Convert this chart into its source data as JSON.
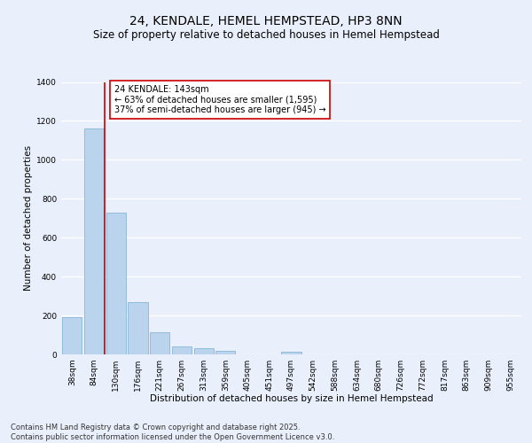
{
  "title": "24, KENDALE, HEMEL HEMPSTEAD, HP3 8NN",
  "subtitle": "Size of property relative to detached houses in Hemel Hempstead",
  "xlabel": "Distribution of detached houses by size in Hemel Hempstead",
  "ylabel": "Number of detached properties",
  "categories": [
    "38sqm",
    "84sqm",
    "130sqm",
    "176sqm",
    "221sqm",
    "267sqm",
    "313sqm",
    "359sqm",
    "405sqm",
    "451sqm",
    "497sqm",
    "542sqm",
    "588sqm",
    "634sqm",
    "680sqm",
    "726sqm",
    "772sqm",
    "817sqm",
    "863sqm",
    "909sqm",
    "955sqm"
  ],
  "values": [
    193,
    1160,
    730,
    270,
    115,
    40,
    32,
    17,
    0,
    0,
    15,
    0,
    0,
    0,
    0,
    0,
    0,
    0,
    0,
    0,
    0
  ],
  "bar_color": "#bad4ee",
  "bar_edge_color": "#7aadd4",
  "vline_color": "#cc0000",
  "vline_position": 1.5,
  "annotation_text": "24 KENDALE: 143sqm\n← 63% of detached houses are smaller (1,595)\n37% of semi-detached houses are larger (945) →",
  "annotation_box_facecolor": "#ffffff",
  "annotation_box_edgecolor": "#cc0000",
  "ylim": [
    0,
    1400
  ],
  "yticks": [
    0,
    200,
    400,
    600,
    800,
    1000,
    1200,
    1400
  ],
  "bg_color": "#eaf0fb",
  "plot_bg_color": "#eaf0fb",
  "grid_color": "#ffffff",
  "footer": "Contains HM Land Registry data © Crown copyright and database right 2025.\nContains public sector information licensed under the Open Government Licence v3.0.",
  "title_fontsize": 10,
  "subtitle_fontsize": 8.5,
  "axis_label_fontsize": 7.5,
  "tick_fontsize": 6.5,
  "annotation_fontsize": 7,
  "footer_fontsize": 6
}
